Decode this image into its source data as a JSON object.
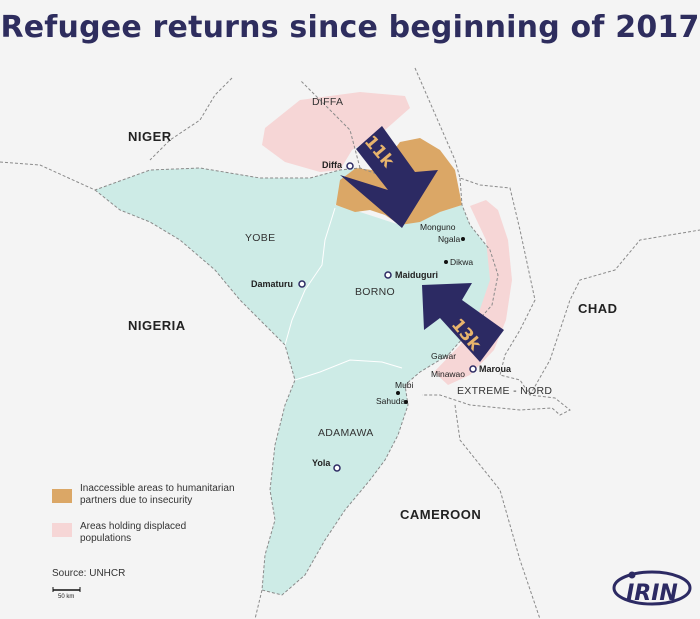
{
  "title": "Refugee returns since beginning of 2017",
  "colors": {
    "nigeria_fill": "#cdebe6",
    "inaccessible": "#dba766",
    "displaced": "#f6d6d6",
    "arrow": "#2c2a63",
    "arrow_text": "#e7b46c",
    "title": "#2e2d5e"
  },
  "countries": {
    "niger": "NIGER",
    "nigeria": "NIGERIA",
    "chad": "CHAD",
    "cameroon": "CAMEROON"
  },
  "regions": {
    "diffa": "DIFFA",
    "yobe": "YOBE",
    "borno": "BORNO",
    "adamawa": "ADAMAWA",
    "extreme_nord": "EXTREME - NORD"
  },
  "cities": {
    "diffa": "Diffa",
    "damaturu": "Damaturu",
    "maiduguri": "Maiduguri",
    "monguno": "Monguno",
    "ngala": "Ngala",
    "dikwa": "Dikwa",
    "gawar": "Gawar",
    "minawao": "Minawao",
    "maroua": "Maroua",
    "mubi": "Mubi",
    "sahuda": "Sahuda",
    "yola": "Yola"
  },
  "arrows": {
    "niger_returns": "11k",
    "cameroon_returns": "13k"
  },
  "legend": {
    "inaccessible_line1": "Inaccessible areas to humanitarian",
    "inaccessible_line2": "partners due to insecurity",
    "displaced_line1": "Areas holding displaced",
    "displaced_line2": "populations"
  },
  "source": "Source: UNHCR",
  "scale_label": "50 km",
  "logo": "IRIN"
}
